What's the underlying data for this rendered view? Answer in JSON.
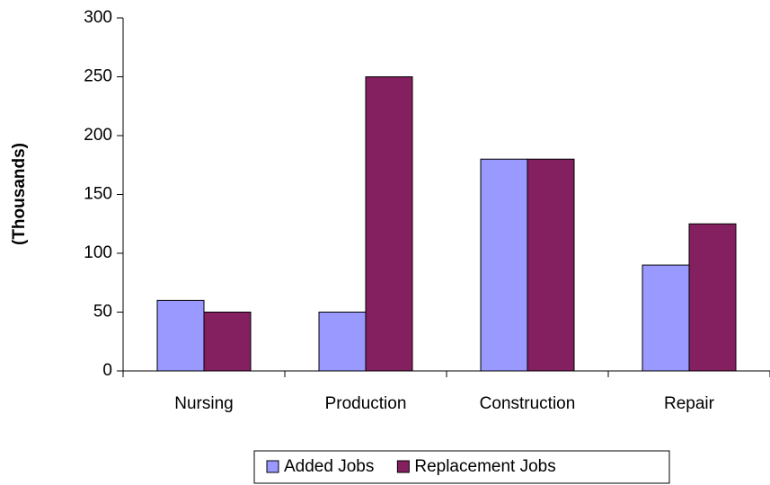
{
  "chart_data": {
    "type": "bar",
    "y_label": "(Thousands)",
    "categories": [
      "Nursing",
      "Production",
      "Construction",
      "Repair"
    ],
    "series": [
      {
        "name": "Added Jobs",
        "color": "#9999ff",
        "values": [
          60,
          50,
          180,
          90
        ]
      },
      {
        "name": "Replacement Jobs",
        "color": "#842060",
        "values": [
          50,
          250,
          180,
          125
        ]
      }
    ],
    "ylim": [
      0,
      300
    ],
    "yticks": [
      0,
      50,
      100,
      150,
      200,
      250,
      300
    ],
    "grid": false,
    "legend": "bottom"
  }
}
